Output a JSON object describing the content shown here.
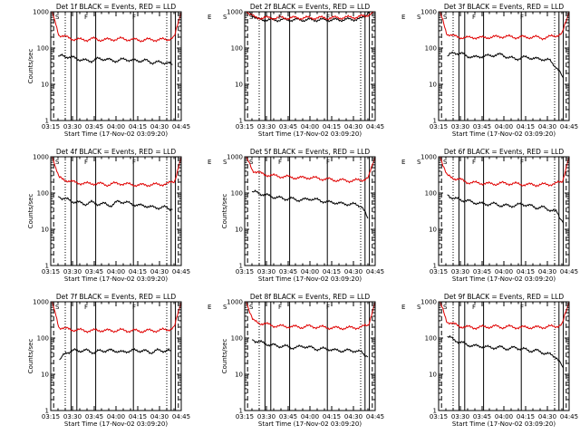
{
  "figure": {
    "colors": {
      "events": "#000000",
      "lld": "#e00000",
      "axes": "#000000",
      "background": "#ffffff"
    }
  },
  "chart_data": [
    {
      "type": "line",
      "title": "Det 1f BLACK = Events, RED = LLD",
      "xlabel": "Start Time (17-Nov-02 03:09:20)",
      "ylabel": "Counts/sec",
      "yscale": "log",
      "ylim": [
        1,
        1000
      ],
      "xlim": [
        "03:15",
        "04:45"
      ],
      "x_ticks": [
        "03:15",
        "03:30",
        "03:45",
        "04:00",
        "04:15",
        "04:30",
        "04:45"
      ],
      "y_ticks": [
        "1",
        "10",
        "100",
        "1000"
      ],
      "markers": [
        "S",
        "F",
        "F",
        "E",
        "S"
      ],
      "vlines": {
        "solid": [
          "03:29",
          "03:33",
          "03:46",
          "04:12",
          "04:38",
          "04:41"
        ],
        "dashed": [
          "03:17",
          "04:43"
        ],
        "dotted": [
          "03:25",
          "04:35"
        ]
      },
      "series": [
        {
          "name": "Events",
          "color": "#000000",
          "start": "03:20",
          "end": "04:39",
          "values": [
            60,
            60,
            55,
            50,
            45,
            45,
            50,
            50,
            45,
            45,
            50,
            45,
            45,
            45,
            40,
            40,
            40,
            35
          ]
        },
        {
          "name": "LLD",
          "color": "#e00000",
          "start": "03:16",
          "end": "04:45",
          "values": [
            1000,
            230,
            200,
            180,
            170,
            170,
            180,
            170,
            170,
            175,
            180,
            175,
            170,
            165,
            170,
            170,
            170,
            175,
            200,
            1000
          ]
        }
      ]
    },
    {
      "type": "line",
      "title": "Det 2f BLACK = Events, RED = LLD",
      "xlabel": "Start Time (17-Nov-02 03:09:20)",
      "ylabel": "",
      "yscale": "log",
      "ylim": [
        1,
        1000
      ],
      "xlim": [
        "03:15",
        "04:45"
      ],
      "x_ticks": [
        "03:15",
        "03:30",
        "03:45",
        "04:00",
        "04:15",
        "04:30",
        "04:45"
      ],
      "y_ticks": [
        "1",
        "10",
        "100",
        "1000"
      ],
      "markers": [
        "S",
        "F",
        "F",
        "E",
        "S"
      ],
      "vlines": {
        "solid": [
          "03:29",
          "03:33",
          "03:46",
          "04:12",
          "04:38",
          "04:41"
        ],
        "dashed": [
          "03:17",
          "04:43"
        ],
        "dotted": [
          "03:25",
          "04:35"
        ]
      },
      "series": [
        {
          "name": "Events",
          "color": "#000000",
          "start": "03:18",
          "end": "04:41",
          "values": [
            1000,
            620,
            600,
            600,
            600,
            600,
            600,
            600,
            600,
            600,
            600,
            600,
            610,
            620,
            640,
            1000
          ]
        },
        {
          "name": "LLD",
          "color": "#e00000",
          "start": "03:16",
          "end": "04:44",
          "values": [
            1000,
            700,
            680,
            680,
            680,
            680,
            680,
            680,
            680,
            680,
            680,
            690,
            700,
            720,
            760,
            1000
          ]
        }
      ]
    },
    {
      "type": "line",
      "title": "Det 3f BLACK = Events, RED = LLD",
      "xlabel": "Start Time (17-Nov-02 03:09:20)",
      "ylabel": "",
      "yscale": "log",
      "ylim": [
        1,
        1000
      ],
      "xlim": [
        "03:15",
        "04:45"
      ],
      "x_ticks": [
        "03:15",
        "03:30",
        "03:45",
        "04:00",
        "04:15",
        "04:30",
        "04:45"
      ],
      "y_ticks": [
        "1",
        "10",
        "100",
        "1000"
      ],
      "markers": [
        "S",
        "F",
        "F",
        "E",
        "S"
      ],
      "vlines": {
        "solid": [
          "03:29",
          "03:33",
          "03:46",
          "04:12",
          "04:38",
          "04:41"
        ],
        "dashed": [
          "03:17",
          "04:43"
        ],
        "dotted": [
          "03:25",
          "04:35"
        ]
      },
      "series": [
        {
          "name": "Events",
          "color": "#000000",
          "start": "03:21",
          "end": "04:41",
          "values": [
            60,
            75,
            70,
            60,
            55,
            60,
            60,
            65,
            65,
            55,
            50,
            55,
            55,
            50,
            50,
            45,
            30,
            15
          ]
        },
        {
          "name": "LLD",
          "color": "#e00000",
          "start": "03:16",
          "end": "04:45",
          "values": [
            1000,
            250,
            210,
            200,
            190,
            200,
            190,
            200,
            200,
            210,
            205,
            200,
            200,
            200,
            200,
            190,
            200,
            220,
            250,
            1000
          ]
        }
      ]
    },
    {
      "type": "line",
      "title": "Det 4f BLACK = Events, RED = LLD",
      "xlabel": "Start Time (17-Nov-02 03:09:20)",
      "ylabel": "Counts/sec",
      "yscale": "log",
      "ylim": [
        1,
        1000
      ],
      "xlim": [
        "03:15",
        "04:45"
      ],
      "x_ticks": [
        "03:15",
        "03:30",
        "03:45",
        "04:00",
        "04:15",
        "04:30",
        "04:45"
      ],
      "y_ticks": [
        "1",
        "10",
        "100",
        "1000"
      ],
      "markers": [
        "S",
        "F",
        "F",
        "E",
        "S"
      ],
      "vlines": {
        "solid": [
          "03:29",
          "03:33",
          "03:46",
          "04:12",
          "04:38",
          "04:41"
        ],
        "dashed": [
          "03:17",
          "04:43"
        ],
        "dotted": [
          "03:25",
          "04:35"
        ]
      },
      "series": [
        {
          "name": "Events",
          "color": "#000000",
          "start": "03:20",
          "end": "04:39",
          "values": [
            80,
            70,
            60,
            55,
            50,
            55,
            50,
            50,
            45,
            60,
            55,
            50,
            45,
            45,
            40,
            40,
            40,
            35
          ]
        },
        {
          "name": "LLD",
          "color": "#e00000",
          "start": "03:16",
          "end": "04:45",
          "values": [
            1000,
            260,
            230,
            200,
            190,
            180,
            185,
            180,
            170,
            180,
            185,
            175,
            170,
            165,
            170,
            170,
            175,
            180,
            210,
            1000
          ]
        }
      ]
    },
    {
      "type": "line",
      "title": "Det 5f BLACK = Events, RED = LLD",
      "xlabel": "Start Time (17-Nov-02 03:09:20)",
      "ylabel": "Counts/sec",
      "yscale": "log",
      "ylim": [
        1,
        1000
      ],
      "xlim": [
        "03:15",
        "04:45"
      ],
      "x_ticks": [
        "03:15",
        "03:30",
        "03:45",
        "04:00",
        "04:15",
        "04:30",
        "04:45"
      ],
      "y_ticks": [
        "1",
        "10",
        "100",
        "1000"
      ],
      "markers": [
        "S",
        "F",
        "F",
        "E",
        "S"
      ],
      "vlines": {
        "solid": [
          "03:29",
          "03:33",
          "03:46",
          "04:12",
          "04:38",
          "04:41"
        ],
        "dashed": [
          "03:17",
          "04:43"
        ],
        "dotted": [
          "03:25",
          "04:35"
        ]
      },
      "series": [
        {
          "name": "Events",
          "color": "#000000",
          "start": "03:20",
          "end": "04:40",
          "values": [
            110,
            100,
            90,
            80,
            75,
            70,
            70,
            65,
            65,
            70,
            65,
            60,
            55,
            55,
            50,
            50,
            48,
            45,
            20
          ]
        },
        {
          "name": "LLD",
          "color": "#e00000",
          "start": "03:16",
          "end": "04:45",
          "values": [
            1000,
            420,
            350,
            320,
            300,
            290,
            280,
            270,
            260,
            270,
            260,
            250,
            240,
            230,
            225,
            220,
            220,
            230,
            260,
            1000
          ]
        }
      ]
    },
    {
      "type": "line",
      "title": "Det 6f BLACK = Events, RED = LLD",
      "xlabel": "Start Time (17-Nov-02 03:09:20)",
      "ylabel": "",
      "yscale": "log",
      "ylim": [
        1,
        1000
      ],
      "xlim": [
        "03:15",
        "04:45"
      ],
      "x_ticks": [
        "03:15",
        "03:30",
        "03:45",
        "04:00",
        "04:15",
        "04:30",
        "04:45"
      ],
      "y_ticks": [
        "1",
        "10",
        "100",
        "1000"
      ],
      "markers": [
        "S",
        "F",
        "F",
        "E",
        "S"
      ],
      "vlines": {
        "solid": [
          "03:29",
          "03:33",
          "03:46",
          "04:12",
          "04:38",
          "04:41"
        ],
        "dashed": [
          "03:17",
          "04:43"
        ],
        "dotted": [
          "03:25",
          "04:35"
        ]
      },
      "series": [
        {
          "name": "Events",
          "color": "#000000",
          "start": "03:21",
          "end": "04:41",
          "values": [
            90,
            70,
            65,
            60,
            55,
            50,
            50,
            50,
            45,
            45,
            45,
            50,
            45,
            40,
            40,
            35,
            30,
            15
          ]
        },
        {
          "name": "LLD",
          "color": "#e00000",
          "start": "03:16",
          "end": "04:45",
          "values": [
            1000,
            300,
            260,
            230,
            200,
            190,
            190,
            180,
            180,
            185,
            185,
            180,
            175,
            170,
            170,
            170,
            175,
            180,
            210,
            1000
          ]
        }
      ]
    },
    {
      "type": "line",
      "title": "Det 7f BLACK = Events, RED = LLD",
      "xlabel": "Start Time (17-Nov-02 03:09:20)",
      "ylabel": "Counts/sec",
      "yscale": "log",
      "ylim": [
        1,
        1000
      ],
      "xlim": [
        "03:15",
        "04:45"
      ],
      "x_ticks": [
        "03:15",
        "03:30",
        "03:45",
        "04:00",
        "04:15",
        "04:30",
        "04:45"
      ],
      "y_ticks": [
        "1",
        "10",
        "100",
        "1000"
      ],
      "markers": [
        "S",
        "F",
        "F",
        "E",
        "S"
      ],
      "vlines": {
        "solid": [
          "03:29",
          "03:33",
          "03:46",
          "04:12",
          "04:38",
          "04:41"
        ],
        "dashed": [
          "03:17",
          "04:43"
        ],
        "dotted": [
          "03:25",
          "04:35"
        ]
      },
      "series": [
        {
          "name": "Events",
          "color": "#000000",
          "start": "03:21",
          "end": "04:38",
          "values": [
            25,
            40,
            45,
            45,
            45,
            40,
            45,
            45,
            45,
            40,
            45,
            45,
            45,
            40,
            45,
            45,
            45
          ]
        },
        {
          "name": "LLD",
          "color": "#e00000",
          "start": "03:16",
          "end": "04:45",
          "values": [
            1000,
            200,
            180,
            170,
            165,
            160,
            160,
            165,
            160,
            160,
            165,
            160,
            160,
            155,
            160,
            160,
            165,
            170,
            200,
            1000
          ]
        }
      ]
    },
    {
      "type": "line",
      "title": "Det 8f BLACK = Events, RED = LLD",
      "xlabel": "Start Time (17-Nov-02 03:09:20)",
      "ylabel": "Counts/sec",
      "yscale": "log",
      "ylim": [
        1,
        1000
      ],
      "xlim": [
        "03:15",
        "04:45"
      ],
      "x_ticks": [
        "03:15",
        "03:30",
        "03:45",
        "04:00",
        "04:15",
        "04:30",
        "04:45"
      ],
      "y_ticks": [
        "1",
        "10",
        "100",
        "1000"
      ],
      "markers": [
        "S",
        "F",
        "F",
        "E",
        "S"
      ],
      "vlines": {
        "solid": [
          "03:29",
          "03:33",
          "03:46",
          "04:12",
          "04:38",
          "04:41"
        ],
        "dashed": [
          "03:17",
          "04:43"
        ],
        "dotted": [
          "03:25",
          "04:35"
        ]
      },
      "series": [
        {
          "name": "Events",
          "color": "#000000",
          "start": "03:20",
          "end": "04:40",
          "values": [
            90,
            80,
            70,
            65,
            60,
            60,
            55,
            55,
            60,
            55,
            50,
            50,
            50,
            45,
            45,
            45,
            45,
            40,
            30
          ]
        },
        {
          "name": "LLD",
          "color": "#e00000",
          "start": "03:16",
          "end": "04:45",
          "values": [
            1000,
            300,
            260,
            240,
            220,
            210,
            210,
            205,
            200,
            210,
            205,
            200,
            195,
            190,
            190,
            190,
            195,
            200,
            230,
            1000
          ]
        }
      ]
    },
    {
      "type": "line",
      "title": "Det 9f BLACK = Events, RED = LLD",
      "xlabel": "Start Time (17-Nov-02 03:09:20)",
      "ylabel": "",
      "yscale": "log",
      "ylim": [
        1,
        1000
      ],
      "xlim": [
        "03:15",
        "04:45"
      ],
      "x_ticks": [
        "03:15",
        "03:30",
        "03:45",
        "04:00",
        "04:15",
        "04:30",
        "04:45"
      ],
      "y_ticks": [
        "1",
        "10",
        "100",
        "1000"
      ],
      "markers": [
        "S",
        "F",
        "F",
        "E",
        "S"
      ],
      "vlines": {
        "solid": [
          "03:29",
          "03:33",
          "03:46",
          "04:12",
          "04:38",
          "04:41"
        ],
        "dashed": [
          "03:17",
          "04:43"
        ],
        "dotted": [
          "03:25",
          "04:35"
        ]
      },
      "series": [
        {
          "name": "Events",
          "color": "#000000",
          "start": "03:21",
          "end": "04:41",
          "values": [
            110,
            90,
            75,
            65,
            60,
            60,
            55,
            55,
            55,
            50,
            55,
            50,
            45,
            45,
            40,
            35,
            30,
            15
          ]
        },
        {
          "name": "LLD",
          "color": "#e00000",
          "start": "03:16",
          "end": "04:45",
          "values": [
            1000,
            290,
            240,
            210,
            200,
            195,
            200,
            205,
            210,
            200,
            205,
            200,
            195,
            200,
            195,
            200,
            205,
            210,
            240,
            1000
          ]
        }
      ]
    }
  ]
}
